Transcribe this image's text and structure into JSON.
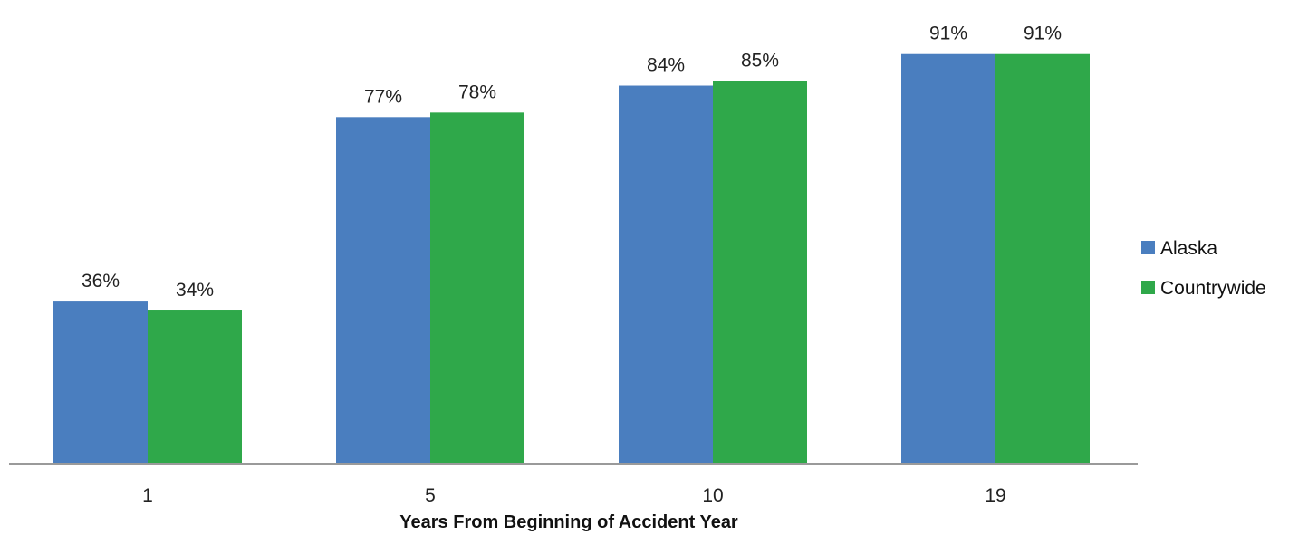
{
  "chart_data": {
    "type": "bar",
    "categories": [
      "1",
      "5",
      "10",
      "19"
    ],
    "series": [
      {
        "name": "Alaska",
        "values": [
          36,
          77,
          84,
          91
        ],
        "labels": [
          "36%",
          "77%",
          "84%",
          "91%"
        ],
        "color": "#4a7ebf"
      },
      {
        "name": "Countrywide",
        "values": [
          34,
          78,
          85,
          91
        ],
        "labels": [
          "34%",
          "78%",
          "85%",
          "91%"
        ],
        "color": "#2fa84a"
      }
    ],
    "xlabel": "Years From Beginning of Accident Year",
    "ylabel": "",
    "ylim": [
      0,
      100
    ],
    "grid": false,
    "legend_position": "right"
  }
}
